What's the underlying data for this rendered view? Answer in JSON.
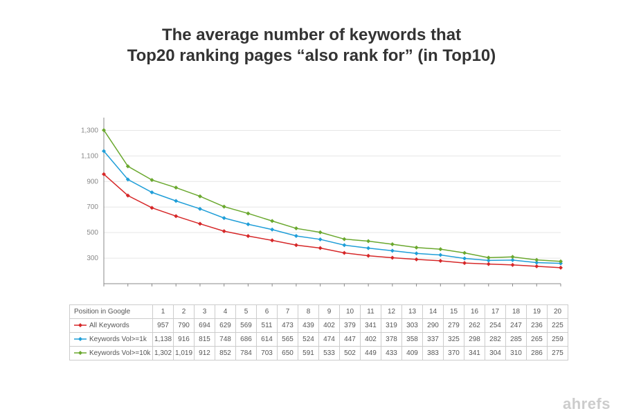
{
  "title_line1": "The average number of keywords that",
  "title_line2": "Top20 ranking pages “also rank for” (in Top10)",
  "title_fontsize": 24,
  "title_color": "#333333",
  "brand": "ahrefs",
  "brand_color": "#cccccc",
  "brand_fontsize": 22,
  "chart": {
    "type": "line",
    "background_color": "#ffffff",
    "grid_color": "#e6e6e6",
    "axis_color": "#888888",
    "tick_label_color": "#888888",
    "tick_fontsize": 10,
    "ylim": [
      100,
      1400
    ],
    "ytick_step": 200,
    "x_positions": [
      1,
      2,
      3,
      4,
      5,
      6,
      7,
      8,
      9,
      10,
      11,
      12,
      13,
      14,
      15,
      16,
      17,
      18,
      19,
      20
    ],
    "line_width": 1.5,
    "marker_style": "diamond",
    "marker_size": 6,
    "series": [
      {
        "id": "all",
        "label": "All Keywords",
        "color": "#d62728",
        "data": [
          957,
          790,
          694,
          629,
          569,
          511,
          473,
          439,
          402,
          379,
          341,
          319,
          303,
          290,
          279,
          262,
          254,
          247,
          236,
          225
        ]
      },
      {
        "id": "vol1k",
        "label": "Keywords Vol>=1k",
        "color": "#1f9ed8",
        "data": [
          1138,
          916,
          815,
          748,
          686,
          614,
          565,
          524,
          474,
          447,
          402,
          378,
          358,
          337,
          325,
          298,
          282,
          285,
          265,
          259
        ]
      },
      {
        "id": "vol10k",
        "label": "Keywords Vol>=10k",
        "color": "#6aa82e",
        "data": [
          1302,
          1019,
          912,
          852,
          784,
          703,
          650,
          591,
          533,
          502,
          449,
          433,
          409,
          383,
          370,
          341,
          304,
          310,
          286,
          275
        ]
      }
    ]
  },
  "table": {
    "header_label": "Position in Google",
    "positions": [
      "1",
      "2",
      "3",
      "4",
      "5",
      "6",
      "7",
      "8",
      "9",
      "10",
      "11",
      "12",
      "13",
      "14",
      "15",
      "16",
      "17",
      "18",
      "19",
      "20"
    ],
    "rows": [
      {
        "label": "All Keywords",
        "swatch_color": "#d62728",
        "values": [
          "957",
          "790",
          "694",
          "629",
          "569",
          "511",
          "473",
          "439",
          "402",
          "379",
          "341",
          "319",
          "303",
          "290",
          "279",
          "262",
          "254",
          "247",
          "236",
          "225"
        ]
      },
      {
        "label": "Keywords Vol>=1k",
        "swatch_color": "#1f9ed8",
        "values": [
          "1,138",
          "916",
          "815",
          "748",
          "686",
          "614",
          "565",
          "524",
          "474",
          "447",
          "402",
          "378",
          "358",
          "337",
          "325",
          "298",
          "282",
          "285",
          "265",
          "259"
        ]
      },
      {
        "label": "Keywords Vol>=10k",
        "swatch_color": "#6aa82e",
        "values": [
          "1,302",
          "1,019",
          "912",
          "852",
          "784",
          "703",
          "650",
          "591",
          "533",
          "502",
          "449",
          "433",
          "409",
          "383",
          "370",
          "341",
          "304",
          "310",
          "286",
          "275"
        ]
      }
    ],
    "first_col_width": 120,
    "data_col_width": 30,
    "border_color": "#cccccc",
    "text_color": "#555555",
    "fontsize": 10
  }
}
